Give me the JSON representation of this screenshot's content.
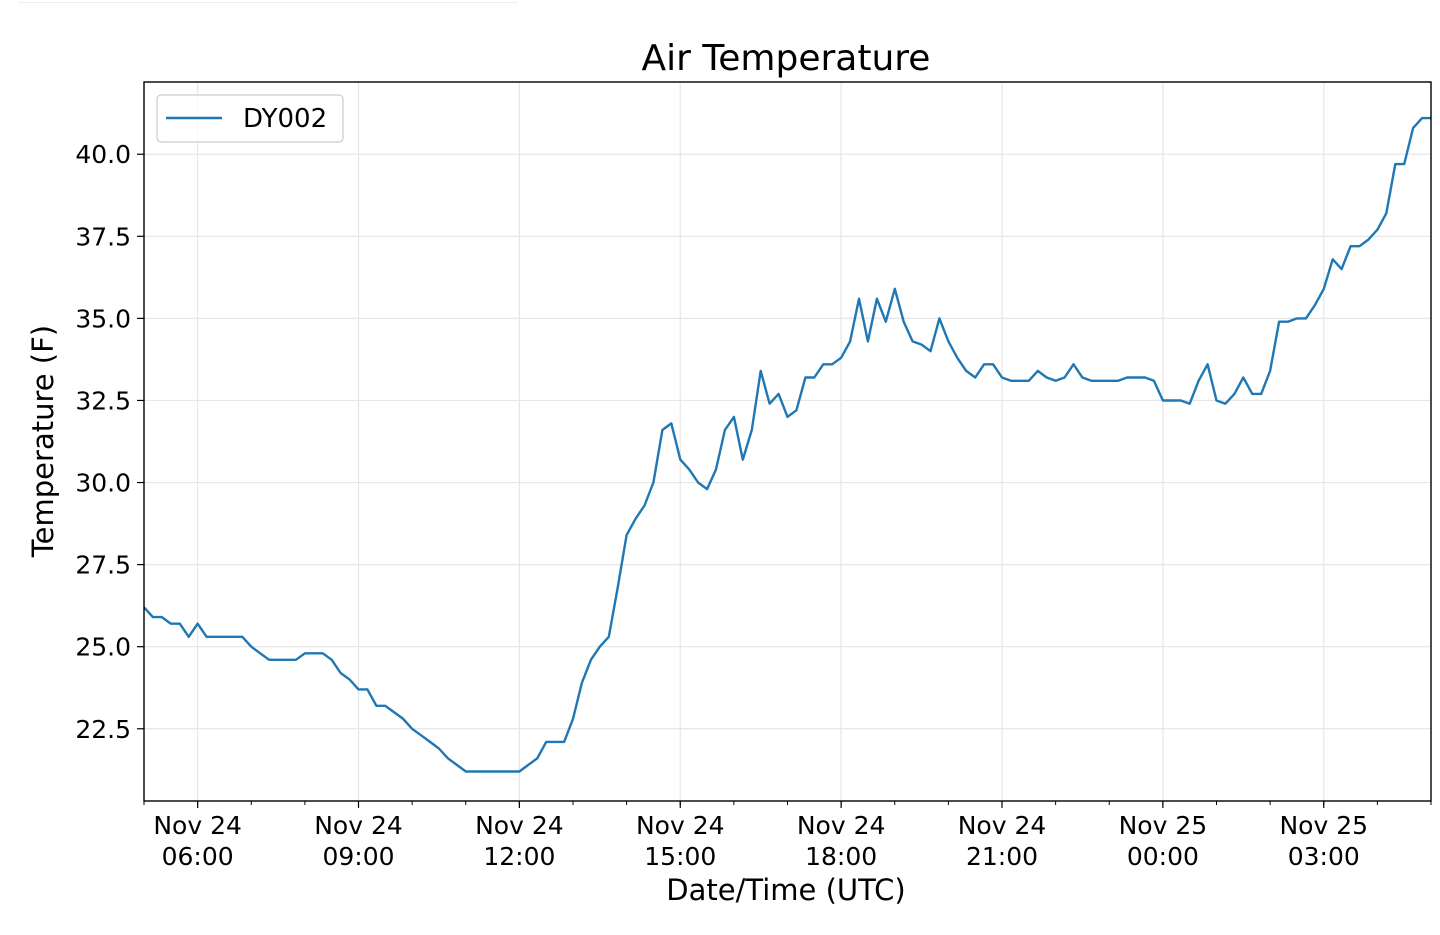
{
  "chart_data": {
    "type": "line",
    "title": "Air Temperature",
    "xlabel": "Date/Time (UTC)",
    "ylabel": "Temperature (F)",
    "grid": true,
    "legend_position": "top-left",
    "series_color": "#1f77b4",
    "xlim": [
      "2021-11-24T05:00",
      "2021-11-25T05:00"
    ],
    "ylim": [
      20.3,
      42.2
    ],
    "x_ticks": [
      {
        "line1": "Nov 24",
        "line2": "06:00",
        "at": "2021-11-24T06:00"
      },
      {
        "line1": "Nov 24",
        "line2": "09:00",
        "at": "2021-11-24T09:00"
      },
      {
        "line1": "Nov 24",
        "line2": "12:00",
        "at": "2021-11-24T12:00"
      },
      {
        "line1": "Nov 24",
        "line2": "15:00",
        "at": "2021-11-24T15:00"
      },
      {
        "line1": "Nov 24",
        "line2": "18:00",
        "at": "2021-11-24T18:00"
      },
      {
        "line1": "Nov 24",
        "line2": "21:00",
        "at": "2021-11-24T21:00"
      },
      {
        "line1": "Nov 25",
        "line2": "00:00",
        "at": "2021-11-25T00:00"
      },
      {
        "line1": "Nov 25",
        "line2": "03:00",
        "at": "2021-11-25T03:00"
      }
    ],
    "y_ticks": [
      "22.5",
      "25.0",
      "27.5",
      "30.0",
      "32.5",
      "35.0",
      "37.5",
      "40.0"
    ],
    "series": [
      {
        "name": "DY002",
        "x": [
          "2021-11-24T05:00",
          "2021-11-24T05:10",
          "2021-11-24T05:20",
          "2021-11-24T05:30",
          "2021-11-24T05:40",
          "2021-11-24T05:50",
          "2021-11-24T06:00",
          "2021-11-24T06:10",
          "2021-11-24T06:20",
          "2021-11-24T06:30",
          "2021-11-24T06:40",
          "2021-11-24T06:50",
          "2021-11-24T07:00",
          "2021-11-24T07:10",
          "2021-11-24T07:20",
          "2021-11-24T07:30",
          "2021-11-24T07:40",
          "2021-11-24T07:50",
          "2021-11-24T08:00",
          "2021-11-24T08:10",
          "2021-11-24T08:20",
          "2021-11-24T08:30",
          "2021-11-24T08:40",
          "2021-11-24T08:50",
          "2021-11-24T09:00",
          "2021-11-24T09:10",
          "2021-11-24T09:20",
          "2021-11-24T09:30",
          "2021-11-24T09:40",
          "2021-11-24T09:50",
          "2021-11-24T10:00",
          "2021-11-24T10:10",
          "2021-11-24T10:20",
          "2021-11-24T10:30",
          "2021-11-24T10:40",
          "2021-11-24T10:50",
          "2021-11-24T11:00",
          "2021-11-24T11:10",
          "2021-11-24T11:20",
          "2021-11-24T11:30",
          "2021-11-24T11:40",
          "2021-11-24T11:50",
          "2021-11-24T12:00",
          "2021-11-24T12:10",
          "2021-11-24T12:20",
          "2021-11-24T12:30",
          "2021-11-24T12:40",
          "2021-11-24T12:50",
          "2021-11-24T13:00",
          "2021-11-24T13:10",
          "2021-11-24T13:20",
          "2021-11-24T13:30",
          "2021-11-24T13:40",
          "2021-11-24T13:50",
          "2021-11-24T14:00",
          "2021-11-24T14:10",
          "2021-11-24T14:20",
          "2021-11-24T14:30",
          "2021-11-24T14:40",
          "2021-11-24T14:50",
          "2021-11-24T15:00",
          "2021-11-24T15:10",
          "2021-11-24T15:20",
          "2021-11-24T15:30",
          "2021-11-24T15:40",
          "2021-11-24T15:50",
          "2021-11-24T16:00",
          "2021-11-24T16:10",
          "2021-11-24T16:20",
          "2021-11-24T16:30",
          "2021-11-24T16:40",
          "2021-11-24T16:50",
          "2021-11-24T17:00",
          "2021-11-24T17:10",
          "2021-11-24T17:20",
          "2021-11-24T17:30",
          "2021-11-24T17:40",
          "2021-11-24T17:50",
          "2021-11-24T18:00",
          "2021-11-24T18:10",
          "2021-11-24T18:20",
          "2021-11-24T18:30",
          "2021-11-24T18:40",
          "2021-11-24T18:50",
          "2021-11-24T19:00",
          "2021-11-24T19:10",
          "2021-11-24T19:20",
          "2021-11-24T19:30",
          "2021-11-24T19:40",
          "2021-11-24T19:50",
          "2021-11-24T20:00",
          "2021-11-24T20:10",
          "2021-11-24T20:20",
          "2021-11-24T20:30",
          "2021-11-24T20:40",
          "2021-11-24T20:50",
          "2021-11-24T21:00",
          "2021-11-24T21:10",
          "2021-11-24T21:20",
          "2021-11-24T21:30",
          "2021-11-24T21:40",
          "2021-11-24T21:50",
          "2021-11-24T22:00",
          "2021-11-24T22:10",
          "2021-11-24T22:20",
          "2021-11-24T22:30",
          "2021-11-24T22:40",
          "2021-11-24T22:50",
          "2021-11-24T23:00",
          "2021-11-24T23:10",
          "2021-11-24T23:20",
          "2021-11-24T23:30",
          "2021-11-24T23:40",
          "2021-11-24T23:50",
          "2021-11-25T00:00",
          "2021-11-25T00:10",
          "2021-11-25T00:20",
          "2021-11-25T00:30",
          "2021-11-25T00:40",
          "2021-11-25T00:50",
          "2021-11-25T01:00",
          "2021-11-25T01:10",
          "2021-11-25T01:20",
          "2021-11-25T01:30",
          "2021-11-25T01:40",
          "2021-11-25T01:50",
          "2021-11-25T02:00",
          "2021-11-25T02:10",
          "2021-11-25T02:20",
          "2021-11-25T02:30",
          "2021-11-25T02:40",
          "2021-11-25T02:50",
          "2021-11-25T03:00",
          "2021-11-25T03:10",
          "2021-11-25T03:20",
          "2021-11-25T03:30",
          "2021-11-25T03:40",
          "2021-11-25T03:50",
          "2021-11-25T04:00",
          "2021-11-25T04:10",
          "2021-11-25T04:20",
          "2021-11-25T04:30",
          "2021-11-25T04:40",
          "2021-11-25T04:50",
          "2021-11-25T05:00"
        ],
        "y": [
          26.2,
          25.9,
          25.9,
          25.7,
          25.7,
          25.3,
          25.7,
          25.3,
          25.3,
          25.3,
          25.3,
          25.3,
          25.0,
          24.8,
          24.6,
          24.6,
          24.6,
          24.6,
          24.8,
          24.8,
          24.8,
          24.6,
          24.2,
          24.0,
          23.7,
          23.7,
          23.2,
          23.2,
          23.0,
          22.8,
          22.5,
          22.3,
          22.1,
          21.9,
          21.6,
          21.4,
          21.2,
          21.2,
          21.2,
          21.2,
          21.2,
          21.2,
          21.2,
          21.4,
          21.6,
          22.1,
          22.1,
          22.1,
          22.8,
          23.9,
          24.6,
          25.0,
          25.3,
          26.8,
          28.4,
          28.9,
          29.3,
          30.0,
          31.6,
          31.8,
          30.7,
          30.4,
          30.0,
          29.8,
          30.4,
          31.6,
          32.0,
          30.7,
          31.6,
          33.4,
          32.4,
          32.7,
          32.0,
          32.2,
          33.2,
          33.2,
          33.6,
          33.6,
          33.8,
          34.3,
          35.6,
          34.3,
          35.6,
          34.9,
          35.9,
          34.9,
          34.3,
          34.2,
          34.0,
          35.0,
          34.3,
          33.8,
          33.4,
          33.2,
          33.6,
          33.6,
          33.2,
          33.1,
          33.1,
          33.1,
          33.4,
          33.2,
          33.1,
          33.2,
          33.6,
          33.2,
          33.1,
          33.1,
          33.1,
          33.1,
          33.2,
          33.2,
          33.2,
          33.1,
          32.5,
          32.5,
          32.5,
          32.4,
          33.1,
          33.6,
          32.5,
          32.4,
          32.7,
          33.2,
          32.7,
          32.7,
          33.4,
          34.9,
          34.9,
          35.0,
          35.0,
          35.4,
          35.9,
          36.8,
          36.5,
          37.2,
          37.2,
          37.4,
          37.7,
          38.2,
          39.7,
          39.7,
          40.8,
          41.1,
          41.1
        ]
      }
    ]
  }
}
